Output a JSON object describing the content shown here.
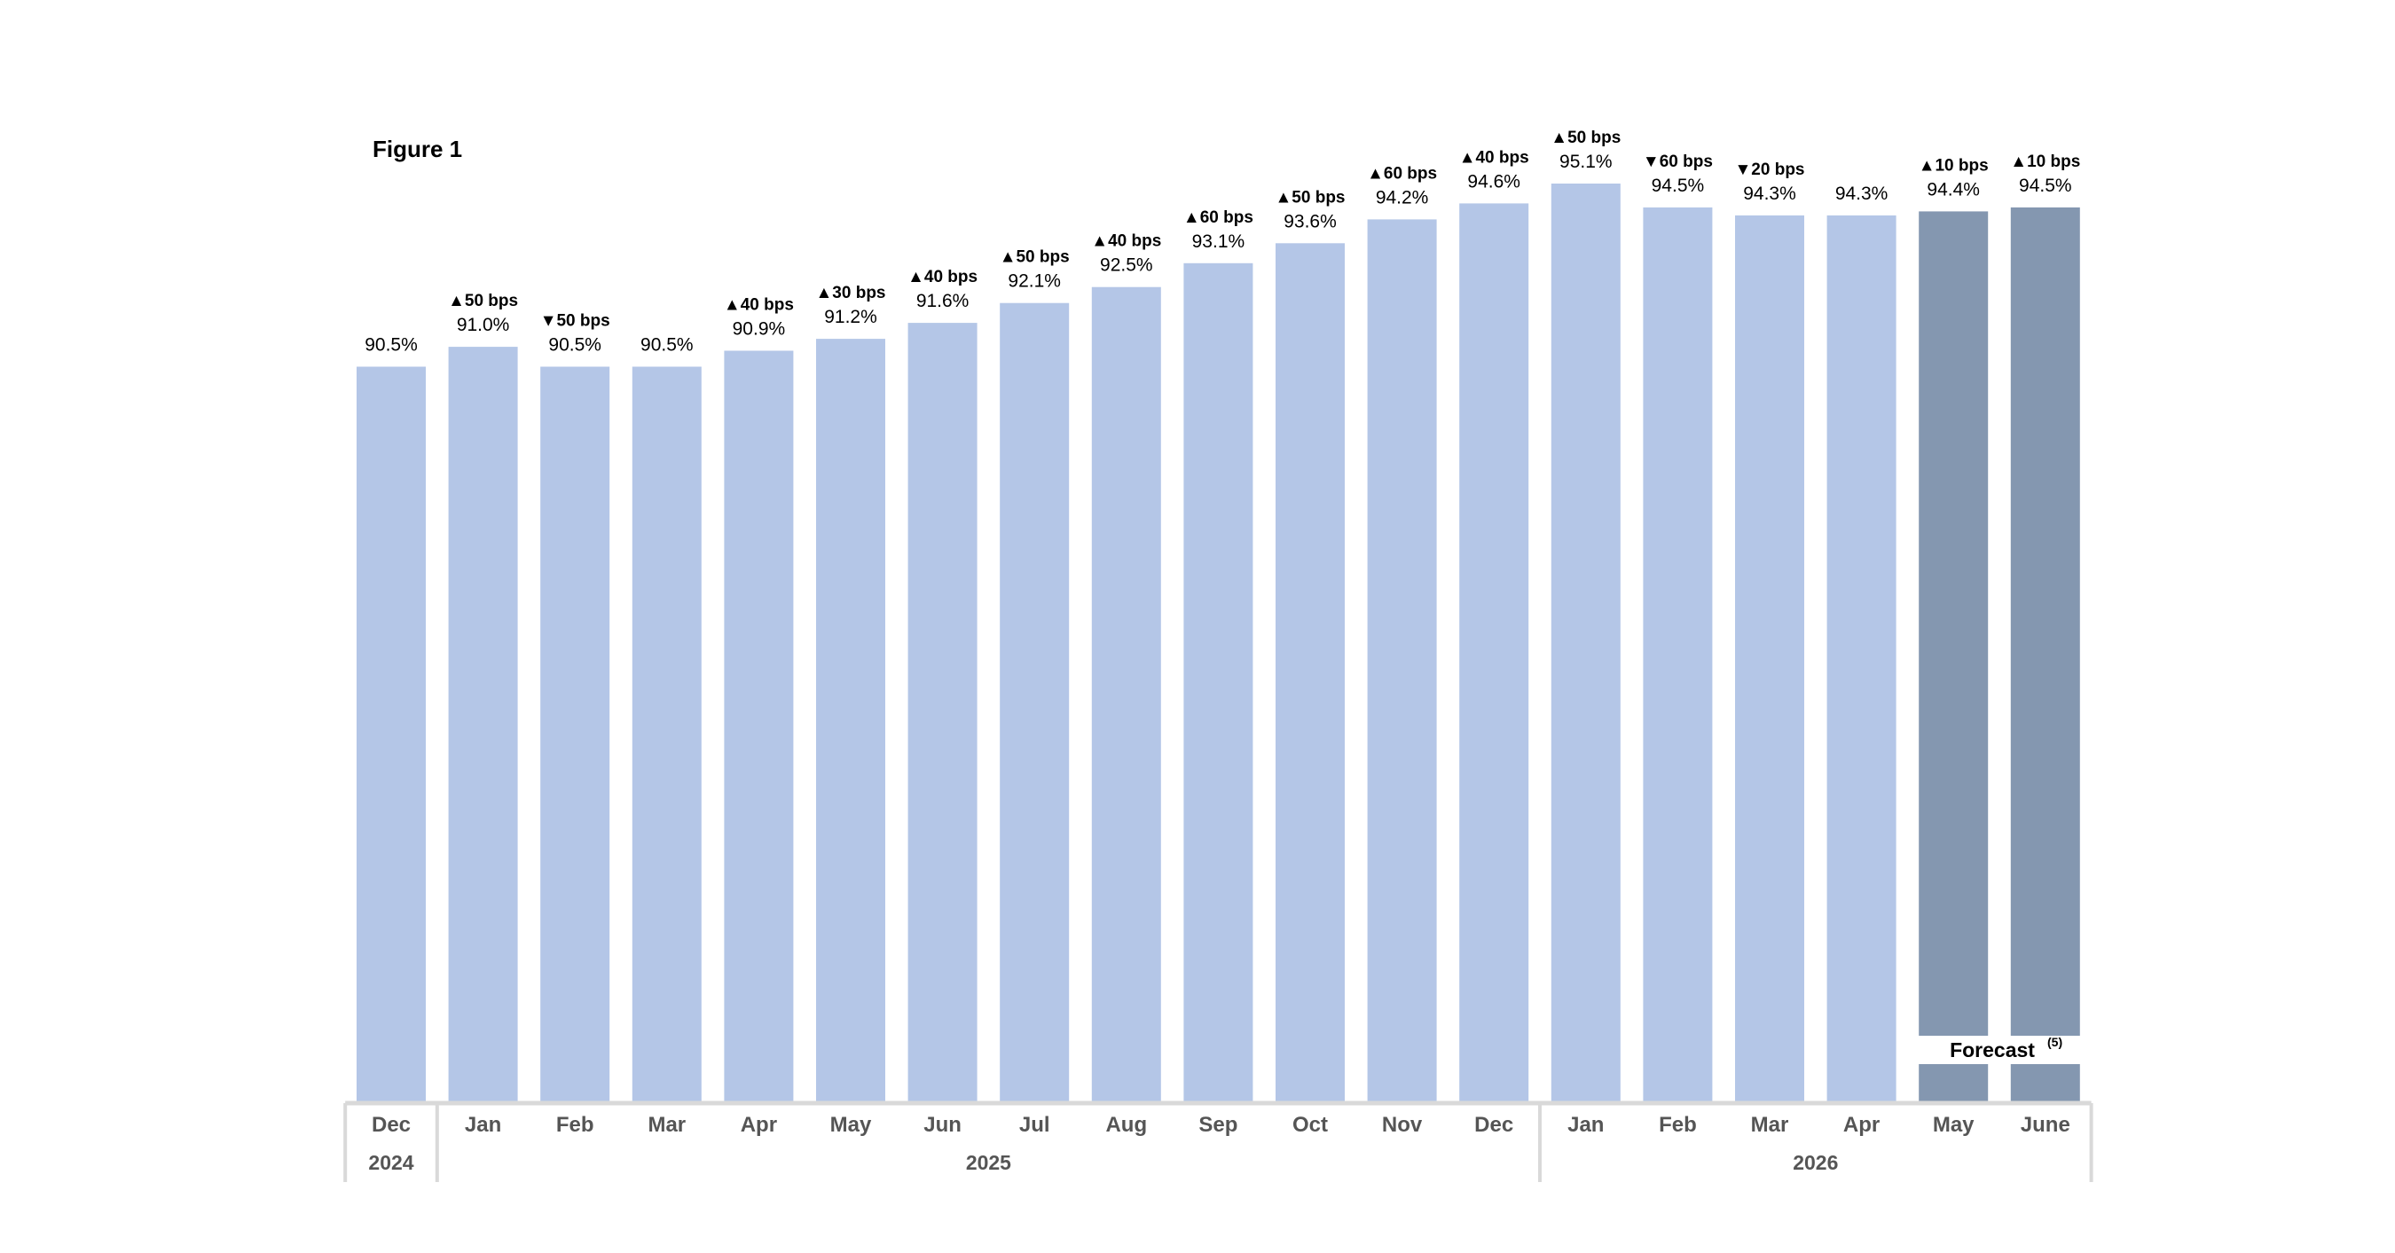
{
  "figure_label": "Figure 1",
  "forecast_label": "Forecast",
  "forecast_note": "(5)",
  "colors": {
    "actual": "#b4c6e7",
    "forecast": "#8497b0",
    "axis": "#d9d9d9",
    "tick_text": "#555555"
  },
  "chart_data": {
    "type": "bar",
    "categories": [
      "Dec",
      "Jan",
      "Feb",
      "Mar",
      "Apr",
      "May",
      "Jun",
      "Jul",
      "Aug",
      "Sep",
      "Oct",
      "Nov",
      "Dec",
      "Jan",
      "Feb",
      "Mar",
      "Apr",
      "May",
      "June"
    ],
    "values": [
      90.5,
      91.0,
      90.5,
      90.5,
      90.9,
      91.2,
      91.6,
      92.1,
      92.5,
      93.1,
      93.6,
      94.2,
      94.6,
      95.1,
      94.5,
      94.3,
      94.3,
      94.4,
      94.5
    ],
    "value_labels": [
      "90.5%",
      "91.0%",
      "90.5%",
      "90.5%",
      "90.9%",
      "91.2%",
      "91.6%",
      "92.1%",
      "92.5%",
      "93.1%",
      "93.6%",
      "94.2%",
      "94.6%",
      "95.1%",
      "94.5%",
      "94.3%",
      "94.3%",
      "94.4%",
      "94.5%"
    ],
    "change_labels": [
      "",
      "▲50 bps",
      "▼50 bps",
      "",
      "▲40 bps",
      "▲30 bps",
      "▲40 bps",
      "▲50 bps",
      "▲40 bps",
      "▲60 bps",
      "▲50 bps",
      "▲60 bps",
      "▲40 bps",
      "▲50 bps",
      "▼60 bps",
      "▼20 bps",
      "",
      "▲10 bps",
      "▲10 bps"
    ],
    "forecast": [
      false,
      false,
      false,
      false,
      false,
      false,
      false,
      false,
      false,
      false,
      false,
      false,
      false,
      false,
      false,
      false,
      false,
      true,
      true
    ],
    "year_groups": [
      {
        "label": "2024",
        "start": 0,
        "end": 0
      },
      {
        "label": "2025",
        "start": 1,
        "end": 12
      },
      {
        "label": "2026",
        "start": 13,
        "end": 18
      }
    ],
    "ylim": [
      72.0,
      95.1
    ],
    "grid": false,
    "legend": "none"
  }
}
